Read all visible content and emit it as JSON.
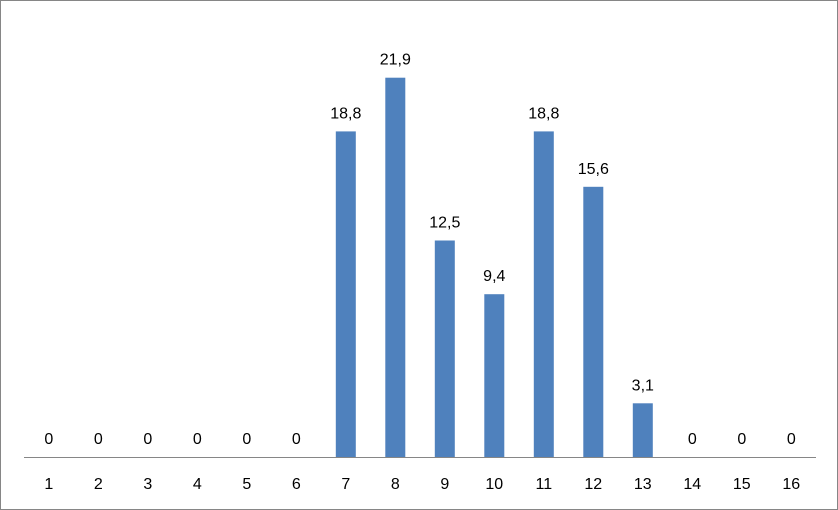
{
  "chart_data": {
    "type": "bar",
    "categories": [
      "1",
      "2",
      "3",
      "4",
      "5",
      "6",
      "7",
      "8",
      "9",
      "10",
      "11",
      "12",
      "13",
      "14",
      "15",
      "16"
    ],
    "values": [
      0,
      0,
      0,
      0,
      0,
      0,
      18.8,
      21.9,
      12.5,
      9.4,
      18.8,
      15.6,
      3.1,
      0,
      0,
      0
    ],
    "data_labels": [
      "0",
      "0",
      "0",
      "0",
      "0",
      "0",
      "18,8",
      "21,9",
      "12,5",
      "9,4",
      "18,8",
      "15,6",
      "3,1",
      "0",
      "0",
      "0"
    ],
    "title": "",
    "xlabel": "",
    "ylabel": "",
    "ylim": [
      0,
      25
    ],
    "grid": false,
    "legend": "none",
    "bar_color": "#4f81bd",
    "axis_color": "#868686"
  }
}
